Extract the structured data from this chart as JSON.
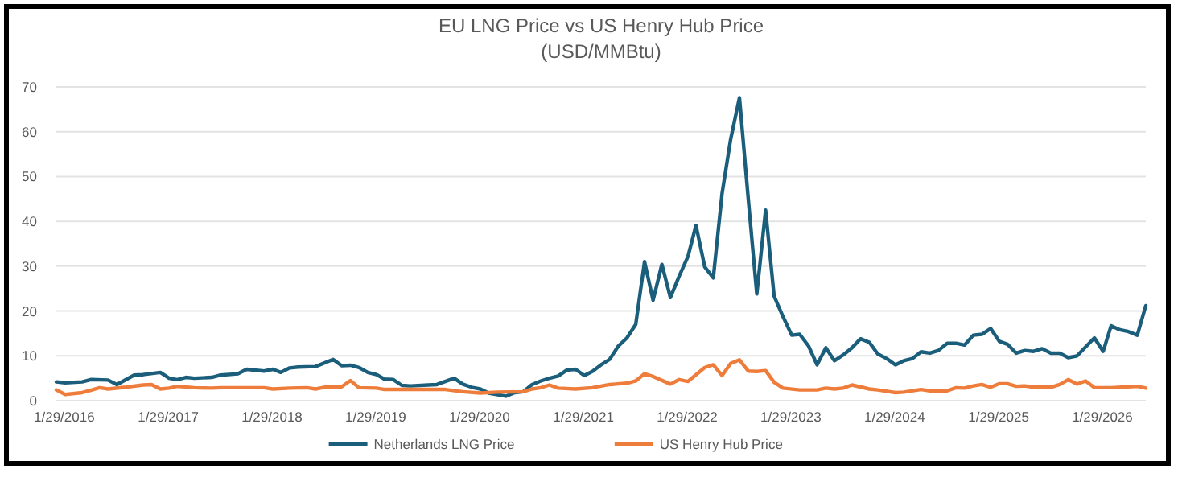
{
  "chart_data": {
    "type": "line",
    "title": "EU LNG Price vs US Henry Hub Price",
    "subtitle": "(USD/MMBtu)",
    "xlim": [
      "2016-01",
      "2026-07"
    ],
    "xticks": [
      {
        "value": "2016-01-29",
        "label": "1/29/2016"
      },
      {
        "value": "2017-01-29",
        "label": "1/29/2017"
      },
      {
        "value": "2018-01-29",
        "label": "1/29/2018"
      },
      {
        "value": "2019-01-29",
        "label": "1/29/2019"
      },
      {
        "value": "2020-01-29",
        "label": "1/29/2020"
      },
      {
        "value": "2021-01-29",
        "label": "1/29/2021"
      },
      {
        "value": "2022-01-29",
        "label": "1/29/2022"
      },
      {
        "value": "2023-01-29",
        "label": "1/29/2023"
      },
      {
        "value": "2024-01-29",
        "label": "1/29/2024"
      },
      {
        "value": "2025-01-29",
        "label": "1/29/2025"
      },
      {
        "value": "2026-01-29",
        "label": "1/29/2026"
      }
    ],
    "ylim": [
      0,
      70
    ],
    "yticks": [
      0,
      10,
      20,
      30,
      40,
      50,
      60,
      70
    ],
    "grid": "y",
    "legend": "bottom",
    "marker": "none",
    "line_style": "solid",
    "series": [
      {
        "name": "Netherlands LNG Price",
        "color": "#1b5e7b",
        "x": [
          "2016-01",
          "2016-02",
          "2016-04",
          "2016-05",
          "2016-07",
          "2016-08",
          "2016-10",
          "2016-11",
          "2017-01",
          "2017-02",
          "2017-03",
          "2017-04",
          "2017-05",
          "2017-07",
          "2017-08",
          "2017-10",
          "2017-11",
          "2018-01",
          "2018-02",
          "2018-03",
          "2018-04",
          "2018-05",
          "2018-07",
          "2018-09",
          "2018-10",
          "2018-11",
          "2018-12",
          "2019-01",
          "2019-02",
          "2019-03",
          "2019-04",
          "2019-05",
          "2019-06",
          "2019-08",
          "2019-09",
          "2019-11",
          "2019-12",
          "2020-01",
          "2020-02",
          "2020-03",
          "2020-05",
          "2020-06",
          "2020-07",
          "2020-08",
          "2020-09",
          "2020-10",
          "2020-11",
          "2020-12",
          "2021-01",
          "2021-02",
          "2021-03",
          "2021-04",
          "2021-05",
          "2021-06",
          "2021-07",
          "2021-08",
          "2021-09",
          "2021-10",
          "2021-11",
          "2021-12",
          "2022-01",
          "2022-02",
          "2022-03",
          "2022-04",
          "2022-05",
          "2022-06",
          "2022-07",
          "2022-08",
          "2022-09",
          "2022-10",
          "2022-11",
          "2022-12",
          "2023-01",
          "2023-02",
          "2023-03",
          "2023-04",
          "2023-05",
          "2023-06",
          "2023-07",
          "2023-08",
          "2023-09",
          "2023-10",
          "2023-11",
          "2023-12",
          "2024-01",
          "2024-02",
          "2024-03",
          "2024-04",
          "2024-05",
          "2024-06",
          "2024-07",
          "2024-08",
          "2024-09",
          "2024-10",
          "2024-11",
          "2024-12",
          "2025-01",
          "2025-02",
          "2025-03",
          "2025-04",
          "2025-05",
          "2025-06",
          "2025-07",
          "2025-08",
          "2025-09",
          "2025-10",
          "2025-11",
          "2026-01",
          "2026-02",
          "2026-03",
          "2026-04",
          "2026-05",
          "2026-06",
          "2026-07"
        ],
        "values": [
          4.2,
          4.0,
          4.2,
          4.7,
          4.6,
          3.6,
          5.7,
          5.8,
          6.3,
          5.0,
          4.7,
          5.2,
          5.0,
          5.2,
          5.7,
          6.0,
          7.0,
          6.6,
          7.0,
          6.3,
          7.3,
          7.5,
          7.6,
          9.2,
          7.8,
          7.9,
          7.4,
          6.3,
          5.8,
          4.8,
          4.7,
          3.4,
          3.3,
          3.5,
          3.6,
          5.0,
          3.7,
          3.0,
          2.6,
          1.7,
          1.0,
          1.8,
          2.0,
          3.6,
          4.4,
          5.0,
          5.5,
          6.8,
          7.0,
          5.6,
          6.5,
          8.0,
          9.2,
          12.2,
          14.0,
          17.0,
          31.0,
          22.4,
          30.4,
          23.0,
          27.8,
          32.2,
          39.1,
          29.8,
          27.4,
          46.3,
          58.3,
          67.6,
          45.0,
          23.8,
          42.5,
          23.3,
          18.8,
          14.6,
          14.8,
          12.2,
          8.0,
          11.8,
          8.9,
          10.2,
          11.8,
          13.8,
          13.0,
          10.4,
          9.4,
          8.0,
          8.9,
          9.4,
          10.9,
          10.6,
          11.2,
          12.8,
          12.8,
          12.4,
          14.6,
          14.8,
          16.1,
          13.2,
          12.6,
          10.6,
          11.2,
          11.0,
          11.6,
          10.6,
          10.6,
          9.6,
          10.0,
          14.0,
          11.0,
          16.7,
          15.8,
          15.4,
          14.6,
          21.2
        ]
      },
      {
        "name": "US Henry Hub Price",
        "color": "#ee7d3b",
        "x": [
          "2016-01",
          "2016-02",
          "2016-04",
          "2016-05",
          "2016-06",
          "2016-07",
          "2016-09",
          "2016-11",
          "2016-12",
          "2017-01",
          "2017-02",
          "2017-03",
          "2017-05",
          "2017-07",
          "2017-08",
          "2017-11",
          "2018-01",
          "2018-02",
          "2018-04",
          "2018-06",
          "2018-07",
          "2018-08",
          "2018-10",
          "2018-11",
          "2018-12",
          "2019-02",
          "2019-03",
          "2019-07",
          "2019-10",
          "2019-12",
          "2020-02",
          "2020-04",
          "2020-07",
          "2020-08",
          "2020-09",
          "2020-10",
          "2020-11",
          "2021-01",
          "2021-03",
          "2021-05",
          "2021-07",
          "2021-08",
          "2021-09",
          "2021-10",
          "2021-12",
          "2022-01",
          "2022-02",
          "2022-04",
          "2022-05",
          "2022-06",
          "2022-07",
          "2022-08",
          "2022-09",
          "2022-10",
          "2022-11",
          "2022-12",
          "2023-01",
          "2023-03",
          "2023-05",
          "2023-06",
          "2023-07",
          "2023-08",
          "2023-09",
          "2023-11",
          "2023-12",
          "2024-02",
          "2024-03",
          "2024-05",
          "2024-06",
          "2024-08",
          "2024-09",
          "2024-10",
          "2024-11",
          "2024-12",
          "2025-01",
          "2025-02",
          "2025-03",
          "2025-04",
          "2025-05",
          "2025-06",
          "2025-08",
          "2025-09",
          "2025-10",
          "2025-11",
          "2025-12",
          "2026-01",
          "2026-03",
          "2026-05",
          "2026-06",
          "2026-07"
        ],
        "values": [
          2.4,
          1.4,
          1.8,
          2.3,
          2.9,
          2.6,
          3.0,
          3.5,
          3.6,
          2.6,
          2.8,
          3.2,
          2.9,
          2.8,
          2.9,
          2.9,
          2.9,
          2.6,
          2.8,
          2.9,
          2.6,
          3.0,
          3.1,
          4.5,
          2.9,
          2.8,
          2.5,
          2.5,
          2.5,
          2.0,
          1.7,
          1.9,
          2.0,
          2.6,
          2.9,
          3.5,
          2.8,
          2.6,
          2.9,
          3.6,
          3.9,
          4.4,
          6.0,
          5.4,
          3.7,
          4.7,
          4.3,
          7.4,
          8.0,
          5.6,
          8.3,
          9.1,
          6.6,
          6.5,
          6.7,
          4.1,
          2.8,
          2.4,
          2.4,
          2.8,
          2.6,
          2.8,
          3.5,
          2.6,
          2.4,
          1.8,
          1.9,
          2.5,
          2.2,
          2.2,
          2.9,
          2.8,
          3.3,
          3.6,
          3.0,
          3.8,
          3.8,
          3.2,
          3.3,
          3.0,
          3.0,
          3.6,
          4.7,
          3.7,
          4.4,
          2.9,
          2.9,
          3.1,
          3.2,
          2.8
        ]
      }
    ]
  }
}
